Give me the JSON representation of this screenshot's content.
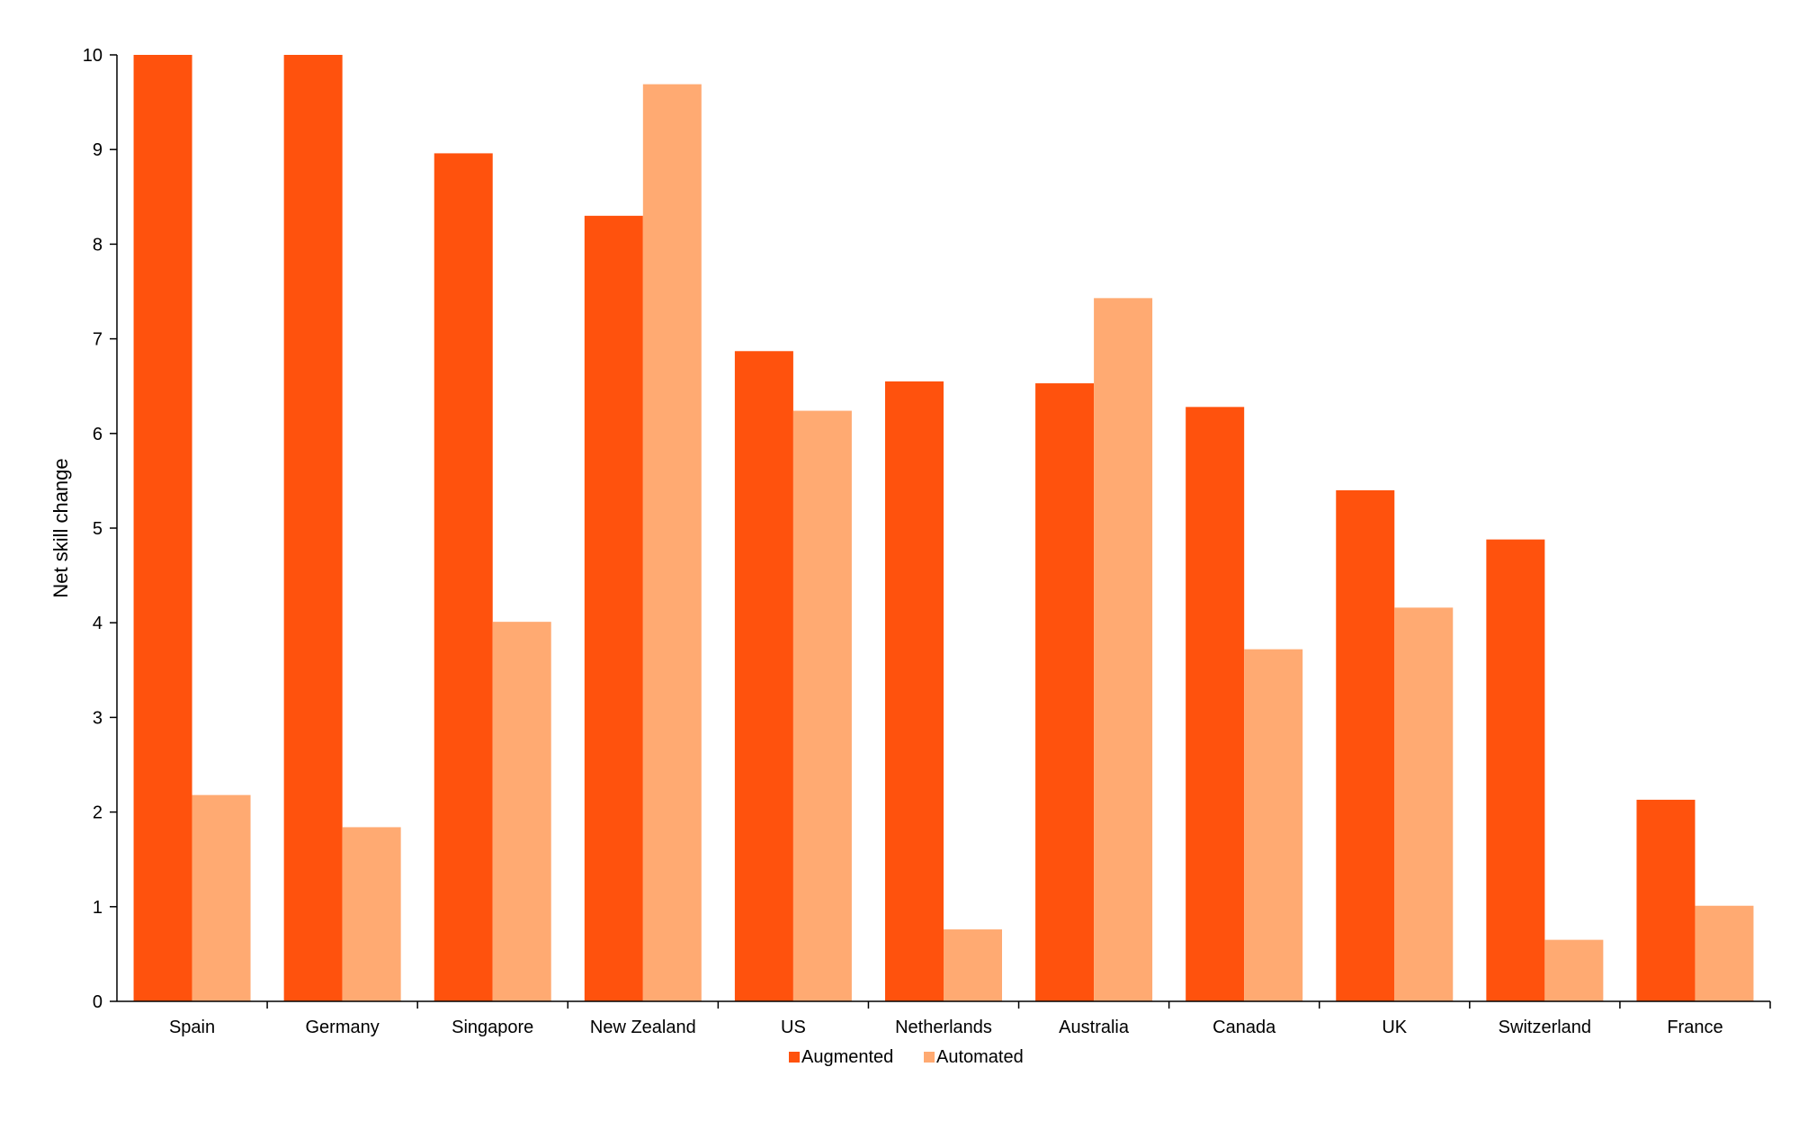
{
  "chart_data": {
    "type": "bar",
    "title": "",
    "xlabel": "",
    "ylabel": "Net skill change",
    "ylim": [
      0,
      10
    ],
    "yticks": [
      0,
      1,
      2,
      3,
      4,
      5,
      6,
      7,
      8,
      9,
      10
    ],
    "grid": false,
    "legend_position": "bottom-center",
    "categories": [
      "Spain",
      "Germany",
      "Singapore",
      "New Zealand",
      "US",
      "Netherlands",
      "Australia",
      "Canada",
      "UK",
      "Switzerland",
      "France"
    ],
    "series": [
      {
        "name": "Augmented",
        "color": "#FF520D",
        "values": [
          10.0,
          10.0,
          8.96,
          8.3,
          6.87,
          6.55,
          6.53,
          6.28,
          5.4,
          4.88,
          2.13
        ]
      },
      {
        "name": "Automated",
        "color": "#FFAA72",
        "values": [
          2.18,
          1.84,
          4.01,
          9.69,
          6.24,
          0.76,
          7.43,
          3.72,
          4.16,
          0.65,
          1.01
        ]
      }
    ]
  }
}
